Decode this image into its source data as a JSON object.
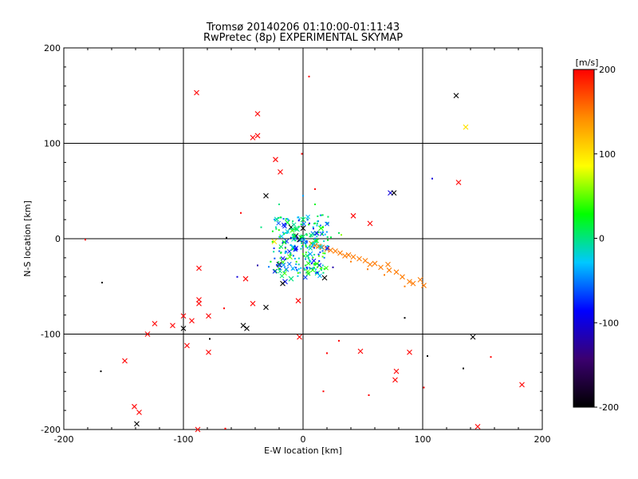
{
  "chart_data": {
    "type": "scatter",
    "title": "Tromsø 20140206 01:10:00-01:11:43",
    "subtitle": "RwPretec (8p) EXPERIMENTAL SKYMAP",
    "xlabel": "E-W location [km]",
    "ylabel": "N-S location [km]",
    "xlim": [
      -200,
      200
    ],
    "ylim": [
      -200,
      200
    ],
    "xticks": [
      -200,
      -100,
      0,
      100,
      200
    ],
    "yticks": [
      -200,
      -100,
      0,
      100,
      200
    ],
    "grid": true,
    "markers": "x (large) and dot (small)",
    "colorbar": {
      "label": "[m/s]",
      "range": [
        -200,
        200
      ],
      "ticks": [
        200,
        100,
        0,
        -100,
        -200
      ],
      "colormap": [
        "#000000",
        "#3b0070",
        "#0000ff",
        "#00c8ff",
        "#00ff00",
        "#ffff00",
        "#ff8c00",
        "#ff0000"
      ]
    },
    "points": [
      {
        "x": -89,
        "y": 153,
        "v": 200,
        "m": "x"
      },
      {
        "x": -38,
        "y": 131,
        "v": 200,
        "m": "x"
      },
      {
        "x": -42,
        "y": 106,
        "v": 200,
        "m": "x"
      },
      {
        "x": -38,
        "y": 108,
        "v": 200,
        "m": "x"
      },
      {
        "x": 5,
        "y": 170,
        "v": 200,
        "m": "d"
      },
      {
        "x": 128,
        "y": 150,
        "v": -200,
        "m": "x"
      },
      {
        "x": 136,
        "y": 117,
        "v": 100,
        "m": "x"
      },
      {
        "x": -23,
        "y": 83,
        "v": 200,
        "m": "x"
      },
      {
        "x": -19,
        "y": 70,
        "v": 200,
        "m": "x"
      },
      {
        "x": -31,
        "y": 45,
        "v": -200,
        "m": "x"
      },
      {
        "x": -1,
        "y": 89,
        "v": 200,
        "m": "d"
      },
      {
        "x": 130,
        "y": 59,
        "v": 200,
        "m": "x"
      },
      {
        "x": 73,
        "y": 48,
        "v": -100,
        "m": "x"
      },
      {
        "x": 76,
        "y": 48,
        "v": -200,
        "m": "x"
      },
      {
        "x": 108,
        "y": 63,
        "v": -100,
        "m": "d"
      },
      {
        "x": 42,
        "y": 24,
        "v": 200,
        "m": "x"
      },
      {
        "x": 56,
        "y": 16,
        "v": 200,
        "m": "x"
      },
      {
        "x": -52,
        "y": 27,
        "v": 200,
        "m": "d"
      },
      {
        "x": -64,
        "y": 1,
        "v": -200,
        "m": "d"
      },
      {
        "x": -182,
        "y": -1,
        "v": 200,
        "m": "d"
      },
      {
        "x": -168,
        "y": -46,
        "v": -200,
        "m": "d"
      },
      {
        "x": -87,
        "y": -31,
        "v": 200,
        "m": "x"
      },
      {
        "x": -48,
        "y": -42,
        "v": 200,
        "m": "x"
      },
      {
        "x": -87,
        "y": -64,
        "v": 200,
        "m": "x"
      },
      {
        "x": -87,
        "y": -68,
        "v": 200,
        "m": "x"
      },
      {
        "x": -66,
        "y": -73,
        "v": 200,
        "m": "d"
      },
      {
        "x": -42,
        "y": -68,
        "v": 200,
        "m": "x"
      },
      {
        "x": -31,
        "y": -72,
        "v": -200,
        "m": "x"
      },
      {
        "x": -4,
        "y": -65,
        "v": 200,
        "m": "x"
      },
      {
        "x": -100,
        "y": -81,
        "v": 200,
        "m": "x"
      },
      {
        "x": -93,
        "y": -86,
        "v": 200,
        "m": "x"
      },
      {
        "x": -79,
        "y": -81,
        "v": 200,
        "m": "x"
      },
      {
        "x": -124,
        "y": -89,
        "v": 200,
        "m": "x"
      },
      {
        "x": -109,
        "y": -91,
        "v": 200,
        "m": "x"
      },
      {
        "x": -100,
        "y": -94,
        "v": -200,
        "m": "x"
      },
      {
        "x": -50,
        "y": -91,
        "v": -200,
        "m": "x"
      },
      {
        "x": -47,
        "y": -94,
        "v": -200,
        "m": "x"
      },
      {
        "x": -130,
        "y": -100,
        "v": 200,
        "m": "x"
      },
      {
        "x": -3,
        "y": -103,
        "v": 200,
        "m": "x"
      },
      {
        "x": -97,
        "y": -112,
        "v": 200,
        "m": "x"
      },
      {
        "x": -79,
        "y": -119,
        "v": 200,
        "m": "x"
      },
      {
        "x": -78,
        "y": -105,
        "v": -200,
        "m": "d"
      },
      {
        "x": -149,
        "y": -128,
        "v": 200,
        "m": "x"
      },
      {
        "x": -169,
        "y": -139,
        "v": -200,
        "m": "d"
      },
      {
        "x": -141,
        "y": -176,
        "v": 200,
        "m": "x"
      },
      {
        "x": -137,
        "y": -182,
        "v": 200,
        "m": "x"
      },
      {
        "x": -139,
        "y": -194,
        "v": -200,
        "m": "x"
      },
      {
        "x": -88,
        "y": -200,
        "v": 200,
        "m": "x"
      },
      {
        "x": -65,
        "y": -199,
        "v": 200,
        "m": "d"
      },
      {
        "x": 18,
        "y": -41,
        "v": -200,
        "m": "x"
      },
      {
        "x": 85,
        "y": -83,
        "v": -200,
        "m": "d"
      },
      {
        "x": 142,
        "y": -103,
        "v": -200,
        "m": "x"
      },
      {
        "x": 30,
        "y": -107,
        "v": 200,
        "m": "d"
      },
      {
        "x": 20,
        "y": -120,
        "v": 200,
        "m": "d"
      },
      {
        "x": 48,
        "y": -118,
        "v": 200,
        "m": "x"
      },
      {
        "x": 89,
        "y": -119,
        "v": 200,
        "m": "x"
      },
      {
        "x": 104,
        "y": -123,
        "v": -200,
        "m": "d"
      },
      {
        "x": 134,
        "y": -136,
        "v": -200,
        "m": "d"
      },
      {
        "x": 157,
        "y": -124,
        "v": 200,
        "m": "d"
      },
      {
        "x": 78,
        "y": -139,
        "v": 200,
        "m": "x"
      },
      {
        "x": 77,
        "y": -148,
        "v": 200,
        "m": "x"
      },
      {
        "x": 101,
        "y": -156,
        "v": 200,
        "m": "d"
      },
      {
        "x": 55,
        "y": -164,
        "v": 200,
        "m": "d"
      },
      {
        "x": 17,
        "y": -160,
        "v": 200,
        "m": "d"
      },
      {
        "x": 183,
        "y": -153,
        "v": 200,
        "m": "x"
      },
      {
        "x": 146,
        "y": -197,
        "v": 200,
        "m": "x"
      },
      {
        "x": 101,
        "y": -49,
        "v": 150,
        "m": "x"
      },
      {
        "x": 98,
        "y": -43,
        "v": 150,
        "m": "x"
      },
      {
        "x": 92,
        "y": -47,
        "v": 150,
        "m": "x"
      },
      {
        "x": 89,
        "y": -45,
        "v": 150,
        "m": "x"
      },
      {
        "x": 83,
        "y": -40,
        "v": 150,
        "m": "x"
      },
      {
        "x": 78,
        "y": -35,
        "v": 150,
        "m": "x"
      },
      {
        "x": 72,
        "y": -33,
        "v": 150,
        "m": "x"
      },
      {
        "x": 71,
        "y": -27,
        "v": 150,
        "m": "x"
      },
      {
        "x": 65,
        "y": -30,
        "v": 150,
        "m": "x"
      },
      {
        "x": 60,
        "y": -26,
        "v": 150,
        "m": "x"
      },
      {
        "x": 56,
        "y": -27,
        "v": 150,
        "m": "x"
      },
      {
        "x": 52,
        "y": -23,
        "v": 150,
        "m": "x"
      },
      {
        "x": 47,
        "y": -21,
        "v": 150,
        "m": "x"
      },
      {
        "x": 42,
        "y": -19,
        "v": 150,
        "m": "x"
      },
      {
        "x": 38,
        "y": -17,
        "v": 150,
        "m": "x"
      },
      {
        "x": 35,
        "y": -18,
        "v": 150,
        "m": "x"
      },
      {
        "x": 31,
        "y": -15,
        "v": 150,
        "m": "x"
      },
      {
        "x": 27,
        "y": -13,
        "v": 150,
        "m": "x"
      },
      {
        "x": 23,
        "y": -12,
        "v": 150,
        "m": "x"
      },
      {
        "x": 20,
        "y": -11,
        "v": 150,
        "m": "x"
      },
      {
        "x": 16,
        "y": -9,
        "v": 150,
        "m": "x"
      },
      {
        "x": 13,
        "y": -8,
        "v": 150,
        "m": "x"
      },
      {
        "x": 10,
        "y": -7,
        "v": 150,
        "m": "x"
      },
      {
        "x": 7,
        "y": -5,
        "v": 150,
        "m": "x"
      },
      {
        "x": 40,
        "y": -24,
        "v": 150,
        "m": "d"
      },
      {
        "x": 54,
        "y": -32,
        "v": 150,
        "m": "d"
      },
      {
        "x": 68,
        "y": -38,
        "v": 150,
        "m": "d"
      },
      {
        "x": 85,
        "y": -50,
        "v": 150,
        "m": "d"
      },
      {
        "x": -5,
        "y": 10,
        "v": 0,
        "m": "x"
      },
      {
        "x": 0,
        "y": 2,
        "v": 0,
        "m": "x"
      },
      {
        "x": -8,
        "y": -10,
        "v": 0,
        "m": "x"
      },
      {
        "x": -13,
        "y": 17,
        "v": 20,
        "m": "x"
      },
      {
        "x": 0,
        "y": 20,
        "v": 10,
        "m": "x"
      },
      {
        "x": 0,
        "y": 11,
        "v": -200,
        "m": "x"
      },
      {
        "x": -6,
        "y": 3,
        "v": -200,
        "m": "x"
      },
      {
        "x": -3,
        "y": -1,
        "v": -200,
        "m": "x"
      },
      {
        "x": -24,
        "y": -3,
        "v": 100,
        "m": "x"
      },
      {
        "x": -11,
        "y": -19,
        "v": 50,
        "m": "x"
      },
      {
        "x": -20,
        "y": -27,
        "v": -200,
        "m": "x"
      },
      {
        "x": -14,
        "y": -32,
        "v": -50,
        "m": "x"
      },
      {
        "x": -10,
        "y": -42,
        "v": 0,
        "m": "x"
      },
      {
        "x": -15,
        "y": -45,
        "v": -80,
        "m": "x"
      },
      {
        "x": -17,
        "y": -47,
        "v": -200,
        "m": "x"
      },
      {
        "x": 12,
        "y": -36,
        "v": 0,
        "m": "x"
      },
      {
        "x": 15,
        "y": 11,
        "v": 30,
        "m": "x"
      },
      {
        "x": 6,
        "y": -16,
        "v": -40,
        "m": "x"
      },
      {
        "x": -10,
        "y": 12,
        "v": -200,
        "m": "x"
      },
      {
        "x": 0,
        "y": 45,
        "v": -40,
        "m": "d"
      },
      {
        "x": 10,
        "y": 36,
        "v": 20,
        "m": "d"
      },
      {
        "x": -20,
        "y": 36,
        "v": 0,
        "m": "d"
      },
      {
        "x": -35,
        "y": 12,
        "v": 0,
        "m": "d"
      },
      {
        "x": 30,
        "y": 6,
        "v": 10,
        "m": "d"
      },
      {
        "x": -55,
        "y": -40,
        "v": -100,
        "m": "d"
      },
      {
        "x": -38,
        "y": -28,
        "v": -120,
        "m": "d"
      },
      {
        "x": 25,
        "y": -30,
        "v": -120,
        "m": "d"
      },
      {
        "x": 32,
        "y": 4,
        "v": 60,
        "m": "d"
      },
      {
        "x": 10,
        "y": 52,
        "v": 200,
        "m": "d"
      }
    ]
  }
}
